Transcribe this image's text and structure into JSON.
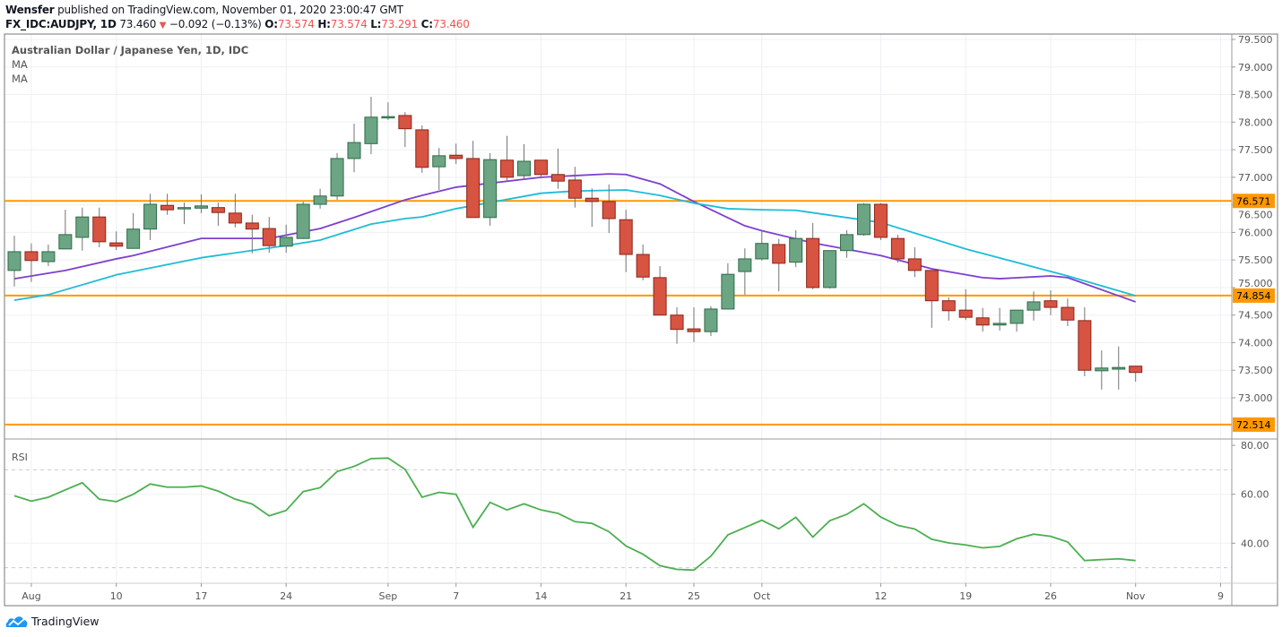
{
  "header": {
    "author": "Wensfer",
    "published_text": "published on TradingView.com, November 01, 2020 23:00:47 GMT",
    "symbol": "FX_IDC:AUDJPY, 1D",
    "last": "73.460",
    "direction_icon": "triangle-down-icon",
    "change": "−0.092 (−0.13%)",
    "o_label": "O:",
    "o": "73.574",
    "h_label": "H:",
    "h": "73.574",
    "l_label": "L:",
    "l": "73.291",
    "c_label": "C:",
    "c": "73.460"
  },
  "legend": {
    "title": "Australian Dollar / Japanese Yen, 1D, IDC",
    "ma1": "MA",
    "ma2": "MA"
  },
  "rsi_title": "RSI",
  "footer": {
    "brand": "TradingView",
    "logo_icon": "tradingview-cloud-icon"
  },
  "colors": {
    "up": "#6ba583",
    "up_border": "#2e6b47",
    "down": "#d75442",
    "down_border": "#8c2418",
    "wick": "#737375",
    "ma_fast": "#7e3fd0",
    "ma_slow": "#1fbcd6",
    "level": "#ff9800",
    "rsi": "#4caf50"
  },
  "chart_data": [
    {
      "type": "candlestick",
      "title": "Australian Dollar / Japanese Yen, 1D, IDC",
      "ylim": [
        72.3,
        79.6
      ],
      "y_ticks": [
        "73.000",
        "73.500",
        "74.000",
        "74.500",
        "75.000",
        "75.500",
        "76.000",
        "76.500",
        "77.000",
        "77.500",
        "78.000",
        "78.500",
        "79.000",
        "79.500"
      ],
      "x_ticks": [
        {
          "label": "Aug",
          "date": "2020-08-03"
        },
        {
          "label": "10",
          "date": "2020-08-10"
        },
        {
          "label": "17",
          "date": "2020-08-17"
        },
        {
          "label": "24",
          "date": "2020-08-24"
        },
        {
          "label": "Sep",
          "date": "2020-09-01"
        },
        {
          "label": "7",
          "date": "2020-09-07"
        },
        {
          "label": "14",
          "date": "2020-09-14"
        },
        {
          "label": "21",
          "date": "2020-09-21"
        },
        {
          "label": "25",
          "date": "2020-09-25"
        },
        {
          "label": "Oct",
          "date": "2020-10-01"
        },
        {
          "label": "12",
          "date": "2020-10-12"
        },
        {
          "label": "19",
          "date": "2020-10-19"
        },
        {
          "label": "26",
          "date": "2020-10-26"
        },
        {
          "label": "Nov",
          "date": "2020-11-02"
        },
        {
          "label": "9",
          "date": "2020-11-09"
        }
      ],
      "horizontal_levels": [
        {
          "value": 76.571,
          "label": "76.571"
        },
        {
          "value": 74.854,
          "label": "74.854"
        },
        {
          "value": 72.514,
          "label": "72.514"
        }
      ],
      "candles": [
        {
          "d": "2020-07-31",
          "o": 75.31,
          "h": 75.94,
          "l": 75.02,
          "c": 75.65
        },
        {
          "d": "2020-08-03",
          "o": 75.65,
          "h": 75.8,
          "l": 75.1,
          "c": 75.49
        },
        {
          "d": "2020-08-04",
          "o": 75.47,
          "h": 75.78,
          "l": 75.39,
          "c": 75.65
        },
        {
          "d": "2020-08-05",
          "o": 75.7,
          "h": 76.41,
          "l": 75.7,
          "c": 75.96
        },
        {
          "d": "2020-08-06",
          "o": 75.91,
          "h": 76.45,
          "l": 75.67,
          "c": 76.28
        },
        {
          "d": "2020-08-07",
          "o": 76.28,
          "h": 76.45,
          "l": 75.73,
          "c": 75.83
        },
        {
          "d": "2020-08-10",
          "o": 75.81,
          "h": 76.02,
          "l": 75.68,
          "c": 75.75
        },
        {
          "d": "2020-08-11",
          "o": 75.71,
          "h": 76.35,
          "l": 75.71,
          "c": 76.06
        },
        {
          "d": "2020-08-12",
          "o": 76.06,
          "h": 76.7,
          "l": 75.86,
          "c": 76.51
        },
        {
          "d": "2020-08-13",
          "o": 76.49,
          "h": 76.7,
          "l": 76.32,
          "c": 76.41
        },
        {
          "d": "2020-08-14",
          "o": 76.43,
          "h": 76.54,
          "l": 76.15,
          "c": 76.45
        },
        {
          "d": "2020-08-17",
          "o": 76.44,
          "h": 76.69,
          "l": 76.35,
          "c": 76.48
        },
        {
          "d": "2020-08-18",
          "o": 76.45,
          "h": 76.54,
          "l": 76.12,
          "c": 76.36
        },
        {
          "d": "2020-08-19",
          "o": 76.35,
          "h": 76.7,
          "l": 76.09,
          "c": 76.17
        },
        {
          "d": "2020-08-20",
          "o": 76.17,
          "h": 76.32,
          "l": 75.62,
          "c": 76.06
        },
        {
          "d": "2020-08-21",
          "o": 76.07,
          "h": 76.28,
          "l": 75.63,
          "c": 75.76
        },
        {
          "d": "2020-08-24",
          "o": 75.75,
          "h": 76.14,
          "l": 75.63,
          "c": 75.91
        },
        {
          "d": "2020-08-25",
          "o": 75.89,
          "h": 76.56,
          "l": 75.88,
          "c": 76.51
        },
        {
          "d": "2020-08-26",
          "o": 76.51,
          "h": 76.79,
          "l": 76.43,
          "c": 76.66
        },
        {
          "d": "2020-08-27",
          "o": 76.66,
          "h": 77.44,
          "l": 76.59,
          "c": 77.34
        },
        {
          "d": "2020-08-28",
          "o": 77.34,
          "h": 77.97,
          "l": 77.09,
          "c": 77.63
        },
        {
          "d": "2020-08-31",
          "o": 77.61,
          "h": 78.46,
          "l": 77.42,
          "c": 78.09
        },
        {
          "d": "2020-09-01",
          "o": 78.09,
          "h": 78.36,
          "l": 78.04,
          "c": 78.1
        },
        {
          "d": "2020-09-02",
          "o": 78.12,
          "h": 78.18,
          "l": 77.55,
          "c": 77.88
        },
        {
          "d": "2020-09-03",
          "o": 77.86,
          "h": 77.94,
          "l": 77.08,
          "c": 77.18
        },
        {
          "d": "2020-09-04",
          "o": 77.19,
          "h": 77.53,
          "l": 76.77,
          "c": 77.39
        },
        {
          "d": "2020-09-07",
          "o": 77.4,
          "h": 77.61,
          "l": 77.24,
          "c": 77.34
        },
        {
          "d": "2020-09-08",
          "o": 77.34,
          "h": 77.66,
          "l": 76.27,
          "c": 76.27
        },
        {
          "d": "2020-09-09",
          "o": 76.27,
          "h": 77.44,
          "l": 76.12,
          "c": 77.32
        },
        {
          "d": "2020-09-10",
          "o": 77.31,
          "h": 77.75,
          "l": 76.93,
          "c": 77.0
        },
        {
          "d": "2020-09-11",
          "o": 77.03,
          "h": 77.6,
          "l": 76.98,
          "c": 77.29
        },
        {
          "d": "2020-09-14",
          "o": 77.31,
          "h": 77.31,
          "l": 76.98,
          "c": 77.05
        },
        {
          "d": "2020-09-15",
          "o": 77.05,
          "h": 77.52,
          "l": 76.79,
          "c": 76.93
        },
        {
          "d": "2020-09-16",
          "o": 76.95,
          "h": 77.19,
          "l": 76.45,
          "c": 76.62
        },
        {
          "d": "2020-09-17",
          "o": 76.62,
          "h": 76.8,
          "l": 76.1,
          "c": 76.56
        },
        {
          "d": "2020-09-18",
          "o": 76.56,
          "h": 76.87,
          "l": 75.99,
          "c": 76.25
        },
        {
          "d": "2020-09-21",
          "o": 76.23,
          "h": 76.41,
          "l": 75.28,
          "c": 75.6
        },
        {
          "d": "2020-09-22",
          "o": 75.6,
          "h": 75.78,
          "l": 75.13,
          "c": 75.19
        },
        {
          "d": "2020-09-23",
          "o": 75.18,
          "h": 75.39,
          "l": 74.5,
          "c": 74.5
        },
        {
          "d": "2020-09-24",
          "o": 74.5,
          "h": 74.64,
          "l": 73.98,
          "c": 74.24
        },
        {
          "d": "2020-09-25",
          "o": 74.25,
          "h": 74.64,
          "l": 74.01,
          "c": 74.2
        },
        {
          "d": "2020-09-28",
          "o": 74.2,
          "h": 74.66,
          "l": 74.12,
          "c": 74.61
        },
        {
          "d": "2020-09-29",
          "o": 74.61,
          "h": 75.44,
          "l": 74.61,
          "c": 75.24
        },
        {
          "d": "2020-09-30",
          "o": 75.29,
          "h": 75.71,
          "l": 74.87,
          "c": 75.52
        },
        {
          "d": "2020-10-01",
          "o": 75.52,
          "h": 76.04,
          "l": 75.49,
          "c": 75.8
        },
        {
          "d": "2020-10-02",
          "o": 75.78,
          "h": 75.88,
          "l": 74.93,
          "c": 75.44
        },
        {
          "d": "2020-10-05",
          "o": 75.46,
          "h": 76.04,
          "l": 75.37,
          "c": 75.89
        },
        {
          "d": "2020-10-06",
          "o": 75.89,
          "h": 76.17,
          "l": 74.97,
          "c": 75.0
        },
        {
          "d": "2020-10-07",
          "o": 75.0,
          "h": 75.67,
          "l": 74.98,
          "c": 75.67
        },
        {
          "d": "2020-10-08",
          "o": 75.67,
          "h": 76.04,
          "l": 75.54,
          "c": 75.96
        },
        {
          "d": "2020-10-09",
          "o": 75.96,
          "h": 76.53,
          "l": 75.94,
          "c": 76.51
        },
        {
          "d": "2020-10-12",
          "o": 76.51,
          "h": 76.53,
          "l": 75.86,
          "c": 75.91
        },
        {
          "d": "2020-10-13",
          "o": 75.89,
          "h": 75.96,
          "l": 75.45,
          "c": 75.52
        },
        {
          "d": "2020-10-14",
          "o": 75.52,
          "h": 75.73,
          "l": 75.19,
          "c": 75.31
        },
        {
          "d": "2020-10-15",
          "o": 75.31,
          "h": 75.31,
          "l": 74.27,
          "c": 74.76
        },
        {
          "d": "2020-10-16",
          "o": 74.76,
          "h": 74.82,
          "l": 74.4,
          "c": 74.58
        },
        {
          "d": "2020-10-19",
          "o": 74.59,
          "h": 74.97,
          "l": 74.41,
          "c": 74.46
        },
        {
          "d": "2020-10-20",
          "o": 74.45,
          "h": 74.63,
          "l": 74.2,
          "c": 74.32
        },
        {
          "d": "2020-10-21",
          "o": 74.32,
          "h": 74.63,
          "l": 74.22,
          "c": 74.35
        },
        {
          "d": "2020-10-22",
          "o": 74.35,
          "h": 74.59,
          "l": 74.2,
          "c": 74.59
        },
        {
          "d": "2020-10-23",
          "o": 74.59,
          "h": 74.93,
          "l": 74.4,
          "c": 74.74
        },
        {
          "d": "2020-10-26",
          "o": 74.76,
          "h": 74.95,
          "l": 74.5,
          "c": 74.64
        },
        {
          "d": "2020-10-27",
          "o": 74.64,
          "h": 74.8,
          "l": 74.3,
          "c": 74.41
        },
        {
          "d": "2020-10-28",
          "o": 74.4,
          "h": 74.64,
          "l": 73.39,
          "c": 73.5
        },
        {
          "d": "2020-10-29",
          "o": 73.49,
          "h": 73.86,
          "l": 73.15,
          "c": 73.54
        },
        {
          "d": "2020-10-30",
          "o": 73.52,
          "h": 73.93,
          "l": 73.15,
          "c": 73.55
        },
        {
          "d": "2020-11-02",
          "o": 73.574,
          "h": 73.574,
          "l": 73.291,
          "c": 73.46
        }
      ],
      "series": [
        {
          "type": "line",
          "points": [
            [
              "2020-07-31",
              75.16
            ],
            [
              "2020-08-05",
              75.31
            ],
            [
              "2020-08-10",
              75.52
            ],
            [
              "2020-08-11",
              75.58
            ],
            [
              "2020-08-17",
              75.89
            ],
            [
              "2020-08-21",
              75.89
            ],
            [
              "2020-08-26",
              76.07
            ],
            [
              "2020-08-28",
              76.27
            ],
            [
              "2020-09-02",
              76.59
            ],
            [
              "2020-09-03",
              76.67
            ],
            [
              "2020-09-07",
              76.82
            ],
            [
              "2020-09-14",
              77.0
            ],
            [
              "2020-09-18",
              77.06
            ],
            [
              "2020-09-21",
              77.05
            ],
            [
              "2020-09-23",
              76.88
            ],
            [
              "2020-09-25",
              76.56
            ],
            [
              "2020-09-30",
              76.12
            ],
            [
              "2020-10-01",
              76.03
            ],
            [
              "2020-10-06",
              75.81
            ],
            [
              "2020-10-12",
              75.58
            ],
            [
              "2020-10-15",
              75.34
            ],
            [
              "2020-10-20",
              75.18
            ],
            [
              "2020-10-21",
              75.16
            ],
            [
              "2020-10-26",
              75.21
            ],
            [
              "2020-10-27",
              75.18
            ],
            [
              "2020-11-02",
              74.74
            ]
          ]
        },
        {
          "type": "line",
          "points": [
            [
              "2020-07-31",
              74.77
            ],
            [
              "2020-08-04",
              74.87
            ],
            [
              "2020-08-10",
              75.23
            ],
            [
              "2020-08-17",
              75.54
            ],
            [
              "2020-08-24",
              75.76
            ],
            [
              "2020-08-26",
              75.86
            ],
            [
              "2020-08-31",
              76.15
            ],
            [
              "2020-09-02",
              76.25
            ],
            [
              "2020-09-03",
              76.28
            ],
            [
              "2020-09-07",
              76.43
            ],
            [
              "2020-09-14",
              76.71
            ],
            [
              "2020-09-16",
              76.75
            ],
            [
              "2020-09-21",
              76.77
            ],
            [
              "2020-09-23",
              76.67
            ],
            [
              "2020-09-25",
              76.53
            ],
            [
              "2020-09-29",
              76.43
            ],
            [
              "2020-10-01",
              76.41
            ],
            [
              "2020-10-05",
              76.4
            ],
            [
              "2020-10-12",
              76.18
            ],
            [
              "2020-10-19",
              75.7
            ],
            [
              "2020-10-27",
              75.21
            ],
            [
              "2020-11-02",
              74.85
            ]
          ]
        }
      ]
    },
    {
      "type": "line",
      "title": "RSI",
      "ylim": [
        26,
        82
      ],
      "y_ticks": [
        "80.00",
        "60.00",
        "40.00"
      ],
      "bands": [
        70,
        30
      ],
      "values": [
        59.4,
        57.2,
        58.8,
        61.8,
        64.7,
        58.0,
        57.0,
        60.0,
        64.2,
        62.9,
        62.9,
        63.4,
        61.3,
        58.0,
        56.0,
        51.2,
        53.4,
        61.1,
        62.7,
        69.3,
        71.4,
        74.6,
        74.8,
        70.2,
        58.8,
        60.8,
        60.0,
        46.5,
        56.7,
        53.6,
        56.1,
        53.6,
        52.2,
        48.8,
        48.1,
        44.7,
        38.9,
        35.5,
        30.8,
        29.3,
        29.0,
        34.7,
        43.4,
        46.4,
        49.4,
        45.9,
        50.6,
        42.5,
        49.2,
        51.8,
        56.1,
        50.7,
        47.3,
        45.8,
        41.6,
        40.1,
        39.3,
        38.1,
        38.7,
        41.8,
        43.7,
        42.8,
        40.5,
        32.9,
        33.3,
        33.6,
        32.9
      ]
    }
  ]
}
